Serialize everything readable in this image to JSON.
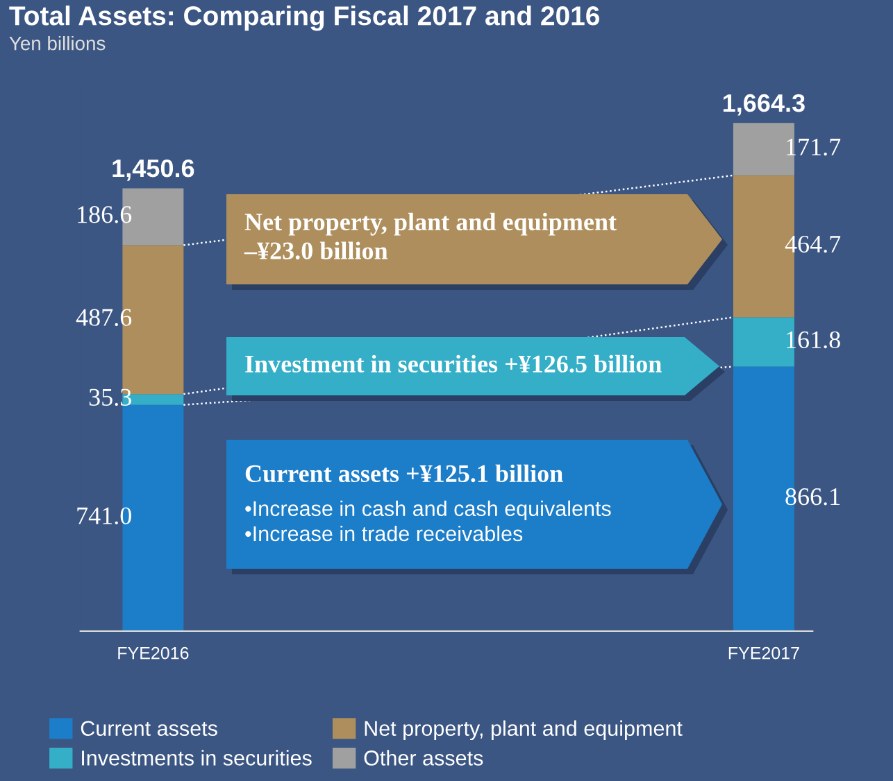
{
  "chart_data": {
    "type": "bar",
    "stacked": true,
    "title": "Total Assets: Comparing Fiscal 2017 and 2016",
    "subtitle": "Yen billions",
    "categories": [
      "FYE2016",
      "FYE2017"
    ],
    "series": [
      {
        "name": "Current assets",
        "color": "#1c7dc8",
        "values": [
          741.0,
          866.1
        ],
        "value_labels": [
          "741.0",
          "866.1"
        ]
      },
      {
        "name": "Investments in securities",
        "color": "#35aec8",
        "values": [
          35.3,
          161.8
        ],
        "value_labels": [
          "35.3",
          "161.8"
        ]
      },
      {
        "name": "Net property, plant and equipment",
        "color": "#ad8e5c",
        "values": [
          487.6,
          464.7
        ],
        "value_labels": [
          "487.6",
          "464.7"
        ]
      },
      {
        "name": "Other assets",
        "color": "#a0a0a0",
        "values": [
          186.6,
          171.7
        ],
        "value_labels": [
          "186.6",
          "171.7"
        ]
      }
    ],
    "totals": [
      "1,450.6",
      "1,664.3"
    ],
    "annotations": [
      "Net property, plant and equipment\n–¥23.0 billion",
      "Investment in securities +¥126.5 billion",
      "Current assets +¥125.1 billion",
      "•Increase in cash and cash equivalents\n•Increase in trade receivables"
    ],
    "legend": "bottom",
    "grid": false
  }
}
